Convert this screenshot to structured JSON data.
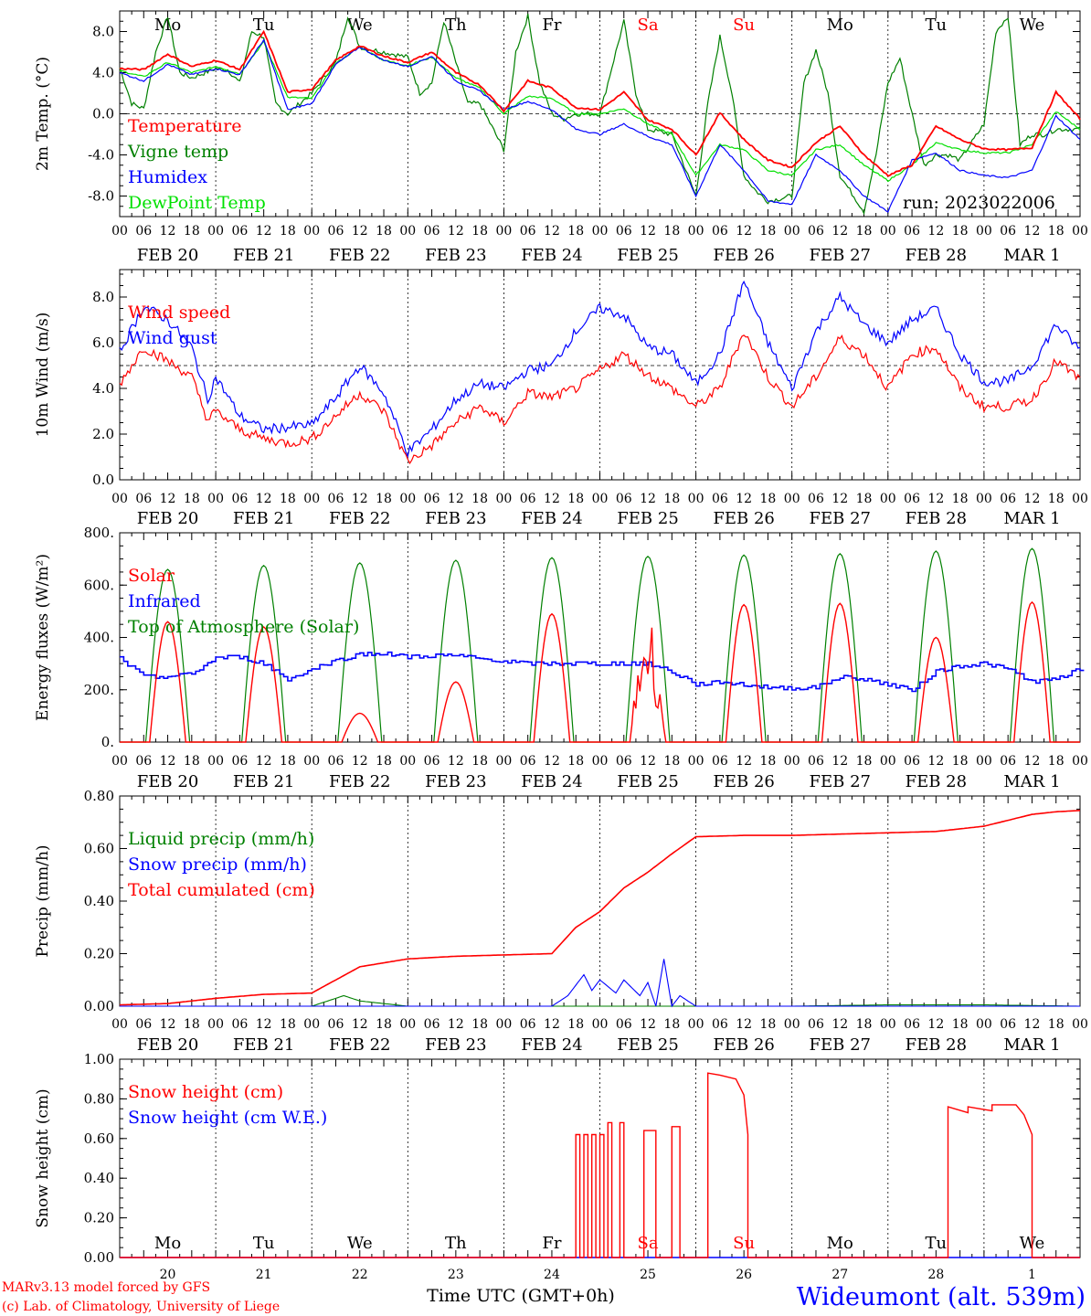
{
  "run_label": "run: 2023022006",
  "hours": [
    "00",
    "06",
    "12",
    "18"
  ],
  "dates": [
    "FEB 20",
    "FEB 21",
    "FEB 22",
    "FEB 23",
    "FEB 24",
    "FEB 25",
    "FEB 26",
    "FEB 27",
    "FEB 28",
    "MAR  1"
  ],
  "weekdays": [
    {
      "label": "Mo",
      "color": "#000000"
    },
    {
      "label": "Tu",
      "color": "#000000"
    },
    {
      "label": "We",
      "color": "#000000"
    },
    {
      "label": "Th",
      "color": "#000000"
    },
    {
      "label": "Fr",
      "color": "#000000"
    },
    {
      "label": "Sa",
      "color": "#ff0000"
    },
    {
      "label": "Su",
      "color": "#ff0000"
    },
    {
      "label": "Mo",
      "color": "#000000"
    },
    {
      "label": "Tu",
      "color": "#000000"
    },
    {
      "label": "We",
      "color": "#000000"
    }
  ],
  "day_numbers": [
    "20",
    "21",
    "22",
    "23",
    "24",
    "25",
    "26",
    "27",
    "28",
    "1"
  ],
  "x_axis_title": "Time UTC (GMT+0h)",
  "credits": [
    "MARv3.13 model forced by GFS",
    "(c) Lab. of Climatology, University of Liege"
  ],
  "station": "Wideumont (alt. 539m)",
  "chart_data": [
    {
      "type": "line",
      "ylabel": "2m Temp. (°C)",
      "ylim": [
        -10,
        10
      ],
      "yticks": [
        "-8.0",
        "-4.0",
        "0.0",
        "4.0",
        "8.0"
      ],
      "ytick_values": [
        -8,
        -4,
        0,
        4,
        8
      ],
      "x_unit": "hours since FEB 20 00 UTC",
      "series": [
        {
          "name": "Temperature",
          "color": "#ff0000",
          "x": [
            0,
            6,
            12,
            18,
            24,
            30,
            36,
            42,
            48,
            54,
            60,
            66,
            72,
            78,
            84,
            90,
            96,
            102,
            108,
            114,
            120,
            126,
            132,
            138,
            144,
            150,
            156,
            162,
            168,
            174,
            180,
            186,
            192,
            198,
            204,
            210,
            216,
            222,
            228,
            234,
            240
          ],
          "y": [
            4.4,
            4.3,
            5.8,
            4.6,
            5.2,
            4.3,
            8.0,
            2.1,
            2.4,
            5.2,
            6.6,
            5.6,
            5.0,
            6.0,
            4.0,
            2.8,
            0.3,
            3.2,
            2.5,
            0.6,
            0.4,
            2.1,
            -0.6,
            -1.5,
            -4.0,
            0.1,
            -2.5,
            -4.5,
            -5.2,
            -2.8,
            -1.2,
            -4.0,
            -6.0,
            -5.0,
            -1.2,
            -2.5,
            -3.4,
            -3.5,
            -3.3,
            2.1,
            -0.5
          ]
        },
        {
          "name": "Vigne temp",
          "color": "#008000",
          "x": [
            0,
            3,
            6,
            9,
            12,
            15,
            18,
            24,
            27,
            30,
            33,
            36,
            39,
            42,
            48,
            54,
            57,
            60,
            66,
            72,
            75,
            78,
            81,
            84,
            87,
            90,
            96,
            99,
            102,
            105,
            108,
            111,
            114,
            117,
            120,
            126,
            129,
            132,
            138,
            144,
            147,
            150,
            153,
            156,
            159,
            162,
            168,
            171,
            174,
            177,
            180,
            186,
            189,
            192,
            195,
            198,
            201,
            204,
            207,
            210,
            216,
            219,
            222,
            225,
            228,
            231,
            234,
            237,
            240
          ],
          "y": [
            4.5,
            1.0,
            0.5,
            6.0,
            9.5,
            4.0,
            3.5,
            4.4,
            4.3,
            3.0,
            8.0,
            7.5,
            1.0,
            0.0,
            2.0,
            5.0,
            9.5,
            6.5,
            6.0,
            5.5,
            2.0,
            3.0,
            9.0,
            5.0,
            1.0,
            1.0,
            -3.5,
            6.0,
            9.5,
            3.0,
            0.0,
            -0.5,
            0.0,
            0.0,
            0.0,
            9.0,
            2.0,
            -1.5,
            -2.0,
            -8.0,
            1.0,
            7.5,
            2.0,
            -6.0,
            -7.5,
            -8.5,
            -8.0,
            3.0,
            6.2,
            2.0,
            -6.0,
            -9.5,
            -4.0,
            3.0,
            5.4,
            0.0,
            -5.0,
            -4.0,
            -4.0,
            -4.5,
            -1.0,
            8.0,
            9.5,
            -3.0,
            -2.0,
            -2.0,
            -1.5,
            -1.5,
            -1.5
          ]
        },
        {
          "name": "Humidex",
          "color": "#0000ff",
          "x": [
            0,
            6,
            12,
            18,
            24,
            30,
            36,
            42,
            48,
            54,
            60,
            66,
            72,
            78,
            84,
            90,
            96,
            102,
            108,
            114,
            120,
            126,
            132,
            138,
            144,
            150,
            156,
            162,
            168,
            174,
            180,
            186,
            192,
            198,
            204,
            210,
            216,
            222,
            228,
            234,
            240
          ],
          "y": [
            4.0,
            3.2,
            4.8,
            3.8,
            4.4,
            3.8,
            7.2,
            0.4,
            1.0,
            4.8,
            6.5,
            5.2,
            4.6,
            5.6,
            3.2,
            2.2,
            0.4,
            1.2,
            0.4,
            -1.5,
            -2.0,
            -1.0,
            -2.2,
            -3.0,
            -8.0,
            -3.0,
            -5.5,
            -8.5,
            -8.8,
            -4.0,
            -5.5,
            -8.0,
            -9.5,
            -4.5,
            -3.8,
            -5.5,
            -6.0,
            -6.2,
            -5.5,
            -0.2,
            -2.5
          ]
        },
        {
          "name": "DewPoint Temp",
          "color": "#00e000",
          "x": [
            0,
            6,
            12,
            18,
            24,
            30,
            36,
            42,
            48,
            54,
            60,
            66,
            72,
            78,
            84,
            90,
            96,
            102,
            108,
            114,
            120,
            126,
            132,
            138,
            144,
            150,
            156,
            162,
            168,
            174,
            180,
            186,
            192,
            198,
            204,
            210,
            216,
            222,
            228,
            234,
            240
          ],
          "y": [
            4.2,
            3.6,
            5.0,
            4.0,
            4.6,
            3.9,
            7.0,
            1.6,
            1.5,
            4.9,
            6.5,
            5.2,
            4.7,
            5.5,
            3.5,
            2.5,
            0.0,
            1.7,
            1.5,
            0.0,
            0.0,
            0.5,
            -1.0,
            -2.0,
            -6.0,
            -3.0,
            -3.5,
            -5.5,
            -6.0,
            -3.5,
            -3.0,
            -5.0,
            -6.5,
            -5.0,
            -2.8,
            -3.5,
            -3.8,
            -3.8,
            -3.0,
            0.2,
            -1.5
          ]
        }
      ]
    },
    {
      "type": "line",
      "ylabel": "10m Wind (m/s)",
      "ylim": [
        0,
        9.2
      ],
      "yticks": [
        "0.0",
        "2.0",
        "4.0",
        "6.0",
        "8.0"
      ],
      "ytick_values": [
        0,
        2,
        4,
        6,
        8
      ],
      "reference_line": 5.0,
      "series": [
        {
          "name": "Wind speed",
          "color": "#ff0000",
          "x": [
            0,
            6,
            12,
            18,
            22,
            24,
            30,
            36,
            42,
            48,
            54,
            60,
            66,
            72,
            78,
            84,
            90,
            96,
            102,
            108,
            114,
            120,
            126,
            132,
            138,
            144,
            150,
            156,
            162,
            168,
            174,
            180,
            186,
            192,
            198,
            204,
            210,
            216,
            222,
            228,
            234,
            240
          ],
          "y": [
            4.2,
            5.8,
            5.2,
            4.5,
            2.6,
            3.0,
            2.2,
            1.8,
            1.6,
            1.8,
            2.8,
            3.8,
            3.0,
            0.8,
            1.5,
            2.5,
            3.2,
            2.5,
            3.8,
            3.6,
            4.0,
            4.8,
            5.5,
            4.6,
            4.0,
            3.2,
            4.0,
            6.5,
            4.5,
            3.2,
            4.5,
            6.2,
            5.5,
            4.0,
            5.5,
            5.8,
            4.0,
            3.2,
            3.2,
            3.5,
            5.2,
            4.4
          ]
        },
        {
          "name": "Wind gust",
          "color": "#0000ff",
          "x": [
            0,
            6,
            12,
            18,
            22,
            24,
            30,
            36,
            42,
            48,
            54,
            60,
            66,
            72,
            78,
            84,
            90,
            96,
            102,
            108,
            114,
            120,
            126,
            132,
            138,
            144,
            150,
            156,
            162,
            168,
            174,
            180,
            186,
            192,
            198,
            204,
            210,
            216,
            222,
            228,
            234,
            240
          ],
          "y": [
            5.6,
            7.6,
            7.0,
            5.8,
            3.5,
            4.5,
            2.8,
            2.2,
            2.3,
            2.4,
            3.6,
            5.0,
            3.8,
            1.2,
            2.2,
            3.5,
            4.2,
            4.0,
            4.8,
            5.0,
            6.5,
            7.5,
            7.2,
            5.8,
            5.5,
            4.2,
            5.5,
            8.7,
            6.0,
            4.0,
            6.5,
            8.0,
            6.8,
            6.0,
            7.0,
            7.5,
            5.5,
            4.3,
            4.3,
            5.0,
            6.8,
            5.7
          ]
        }
      ]
    },
    {
      "type": "line",
      "ylabel": "Energy fluxes (W/m²)",
      "ylim": [
        0,
        800
      ],
      "yticks": [
        "0.",
        "200.",
        "400.",
        "600.",
        "800."
      ],
      "ytick_values": [
        0,
        200,
        400,
        600,
        800
      ],
      "daily_solar_peaks": [
        460,
        440,
        110,
        230,
        490,
        450,
        525,
        530,
        400,
        535
      ],
      "daily_toa_peaks": [
        660,
        675,
        685,
        695,
        705,
        710,
        715,
        720,
        730,
        740
      ],
      "series": [
        {
          "name": "Solar",
          "color": "#ff0000"
        },
        {
          "name": "Infrared",
          "color": "#0000ff",
          "x": [
            0,
            6,
            12,
            18,
            24,
            30,
            36,
            42,
            48,
            54,
            60,
            66,
            72,
            78,
            84,
            90,
            96,
            102,
            108,
            114,
            120,
            126,
            132,
            138,
            144,
            150,
            156,
            162,
            168,
            174,
            180,
            186,
            192,
            198,
            204,
            210,
            216,
            222,
            228,
            234,
            240
          ],
          "y": [
            320,
            250,
            250,
            260,
            325,
            325,
            300,
            240,
            280,
            310,
            335,
            340,
            325,
            330,
            330,
            320,
            310,
            300,
            300,
            300,
            300,
            300,
            300,
            270,
            220,
            230,
            220,
            210,
            205,
            210,
            250,
            240,
            220,
            200,
            270,
            290,
            300,
            280,
            230,
            240,
            280
          ]
        },
        {
          "name": "Top of Atmosphere (Solar)",
          "color": "#008000"
        }
      ]
    },
    {
      "type": "line",
      "ylabel": "Precip (mm/h)",
      "ylim": [
        0,
        0.8
      ],
      "yticks": [
        "0.00",
        "0.20",
        "0.40",
        "0.60",
        "0.80"
      ],
      "ytick_values": [
        0,
        0.2,
        0.4,
        0.6,
        0.8
      ],
      "series": [
        {
          "name": "Liquid precip (mm/h)",
          "color": "#008000",
          "x": [
            0,
            24,
            48,
            56,
            60,
            66,
            72,
            108,
            144,
            168,
            192,
            216,
            240
          ],
          "y": [
            0.0,
            0.0,
            0.0,
            0.04,
            0.02,
            0.01,
            0.0,
            0.0,
            0.0,
            0.0,
            0.005,
            0.005,
            0.0
          ]
        },
        {
          "name": "Snow precip (mm/h)",
          "color": "#0000ff",
          "x": [
            0,
            108,
            112,
            114,
            116,
            118,
            120,
            124,
            126,
            130,
            132,
            134,
            136,
            138,
            140,
            142,
            144,
            180,
            240
          ],
          "y": [
            0.0,
            0.0,
            0.04,
            0.08,
            0.12,
            0.06,
            0.1,
            0.05,
            0.1,
            0.04,
            0.09,
            0.0,
            0.18,
            0.0,
            0.04,
            0.02,
            0.0,
            0.0,
            0.0
          ]
        },
        {
          "name": "Total cumulated (cm)",
          "color": "#ff0000",
          "x": [
            0,
            12,
            24,
            36,
            48,
            60,
            72,
            84,
            96,
            108,
            114,
            120,
            126,
            132,
            138,
            144,
            156,
            168,
            180,
            192,
            204,
            216,
            228,
            234,
            240
          ],
          "y": [
            0.005,
            0.01,
            0.03,
            0.045,
            0.05,
            0.15,
            0.18,
            0.19,
            0.195,
            0.2,
            0.3,
            0.36,
            0.45,
            0.51,
            0.58,
            0.645,
            0.65,
            0.65,
            0.655,
            0.66,
            0.665,
            0.685,
            0.73,
            0.74,
            0.745
          ]
        }
      ]
    },
    {
      "type": "line",
      "ylabel": "Snow height (cm)",
      "ylim": [
        0,
        1.0
      ],
      "yticks": [
        "0.00",
        "0.20",
        "0.40",
        "0.60",
        "0.80",
        "1.00"
      ],
      "ytick_values": [
        0,
        0.2,
        0.4,
        0.6,
        0.8,
        1.0
      ],
      "series": [
        {
          "name": "Snow height (cm)",
          "color": "#ff0000",
          "x": [
            0,
            114,
            114,
            115,
            115,
            116,
            116,
            117,
            117,
            118,
            118,
            119,
            119,
            120,
            120,
            121,
            121,
            122,
            122,
            123,
            123,
            125,
            125,
            126,
            126,
            131,
            131,
            134,
            134,
            138,
            138,
            140,
            140,
            147,
            147,
            150,
            154,
            156,
            157,
            157,
            207,
            207,
            212,
            212,
            215,
            218,
            218,
            224,
            226,
            228,
            228,
            240
          ],
          "y": [
            0,
            0,
            0.62,
            0.62,
            0,
            0,
            0.62,
            0.62,
            0,
            0,
            0.62,
            0.62,
            0,
            0,
            0.62,
            0.62,
            0,
            0,
            0.68,
            0.68,
            0,
            0,
            0.68,
            0.68,
            0,
            0,
            0.64,
            0.64,
            0,
            0,
            0.66,
            0.66,
            0,
            0,
            0.93,
            0.92,
            0.9,
            0.82,
            0.62,
            0,
            0,
            0.76,
            0.73,
            0.76,
            0.75,
            0.74,
            0.77,
            0.77,
            0.72,
            0.62,
            0,
            0
          ]
        },
        {
          "name": "Snow height (cm W.E.)",
          "color": "#0000ff",
          "x": [
            0,
            240
          ],
          "y": [
            0,
            0
          ]
        }
      ]
    }
  ]
}
